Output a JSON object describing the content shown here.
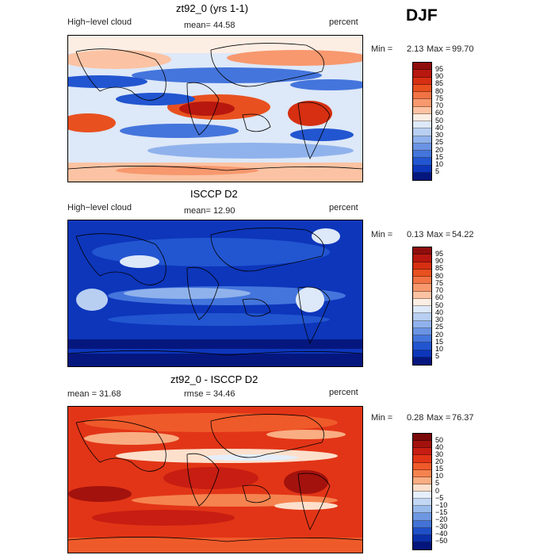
{
  "season": "DJF",
  "chart_data": [
    {
      "type": "heatmap",
      "title": "zt92_0 (yrs 1-1)",
      "left_label": "High−level cloud",
      "right_label": "percent",
      "stat_text": "mean=   44.58",
      "minmax": {
        "min_label": "Min =",
        "min": "2.13",
        "max_label": "Max =",
        "max": "99.70"
      },
      "colorbar": {
        "levels": [
          "95",
          "90",
          "85",
          "80",
          "75",
          "70",
          "60",
          "50",
          "40",
          "30",
          "25",
          "20",
          "15",
          "10",
          "5"
        ],
        "colors": [
          "#8f0d0d",
          "#b8170f",
          "#d62f12",
          "#e8501f",
          "#f17345",
          "#f7986e",
          "#fbc3a3",
          "#fdeee4",
          "#dde8f8",
          "#b8cff2",
          "#90b2ec",
          "#6a93e4",
          "#4475dc",
          "#2255d0",
          "#0d36bb",
          "#05177e"
        ]
      }
    },
    {
      "type": "heatmap",
      "title": "ISCCP D2",
      "left_label": "High−level cloud",
      "right_label": "percent",
      "stat_text": "mean=   12.90",
      "minmax": {
        "min_label": "Min =",
        "min": "0.13",
        "max_label": "Max =",
        "max": "54.22"
      },
      "colorbar": {
        "levels": [
          "95",
          "90",
          "85",
          "80",
          "75",
          "70",
          "60",
          "50",
          "40",
          "30",
          "25",
          "20",
          "15",
          "10",
          "5"
        ],
        "colors": [
          "#8f0d0d",
          "#b8170f",
          "#d62f12",
          "#e8501f",
          "#f17345",
          "#f7986e",
          "#fbc3a3",
          "#fdeee4",
          "#dde8f8",
          "#b8cff2",
          "#90b2ec",
          "#6a93e4",
          "#4475dc",
          "#2255d0",
          "#0d36bb",
          "#05177e"
        ]
      }
    },
    {
      "type": "heatmap",
      "title": "zt92_0 - ISCCP D2",
      "left_label": "mean =   31.68",
      "right_label": "percent",
      "stat_text": "rmse =   34.46",
      "minmax": {
        "min_label": "Min =",
        "min": "0.28",
        "max_label": "Max =",
        "max": "76.37"
      },
      "colorbar": {
        "levels": [
          "50",
          "40",
          "30",
          "20",
          "15",
          "10",
          "5",
          "0",
          "−5",
          "−10",
          "−15",
          "−20",
          "−30",
          "−40",
          "−50"
        ],
        "colors": [
          "#7a0909",
          "#a3120d",
          "#c71d12",
          "#e23517",
          "#ef5a2a",
          "#f5834f",
          "#f9ad82",
          "#fde0cc",
          "#e5eefb",
          "#c2d7f4",
          "#99bbec",
          "#6d97e1",
          "#4373d6",
          "#1f4fc7",
          "#0b2fa8",
          "#04147a"
        ]
      }
    }
  ]
}
